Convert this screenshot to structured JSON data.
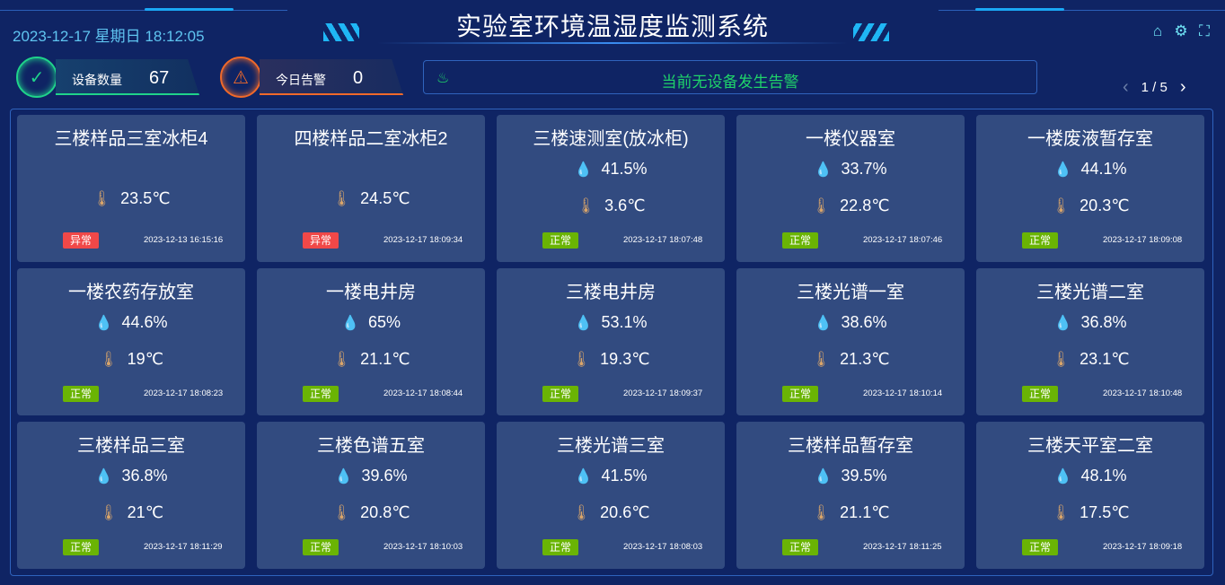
{
  "header": {
    "title": "实验室环境温湿度监测系统",
    "datetime": "2023-12-17 星期日 18:12:05",
    "icons": [
      "home-icon",
      "gear-icon",
      "fullscreen-icon"
    ]
  },
  "stats": [
    {
      "label": "设备数量",
      "value": "67",
      "color": "#1fd38a",
      "icon": "check-circle-icon"
    },
    {
      "label": "今日告警",
      "value": "0",
      "color": "#f0692a",
      "icon": "alarm-light-icon"
    }
  ],
  "alarm": {
    "message": "当前无设备发生告警",
    "color": "#1fd36a"
  },
  "pager": {
    "text": "1 / 5"
  },
  "status_colors": {
    "正常": "#6ab404",
    "异常": "#f04848"
  },
  "devices": [
    {
      "name": "三楼样品三室冰柜4",
      "humidity": null,
      "temp": "23.5℃",
      "status": "异常",
      "time": "2023-12-13 16:15:16"
    },
    {
      "name": "四楼样品二室冰柜2",
      "humidity": null,
      "temp": "24.5℃",
      "status": "异常",
      "time": "2023-12-17 18:09:34"
    },
    {
      "name": "三楼速测室(放冰柜)",
      "humidity": "41.5%",
      "temp": "3.6℃",
      "status": "正常",
      "time": "2023-12-17 18:07:48"
    },
    {
      "name": "一楼仪器室",
      "humidity": "33.7%",
      "temp": "22.8℃",
      "status": "正常",
      "time": "2023-12-17 18:07:46"
    },
    {
      "name": "一楼废液暂存室",
      "humidity": "44.1%",
      "temp": "20.3℃",
      "status": "正常",
      "time": "2023-12-17 18:09:08"
    },
    {
      "name": "一楼农药存放室",
      "humidity": "44.6%",
      "temp": "19℃",
      "status": "正常",
      "time": "2023-12-17 18:08:23"
    },
    {
      "name": "一楼电井房",
      "humidity": "65%",
      "temp": "21.1℃",
      "status": "正常",
      "time": "2023-12-17 18:08:44"
    },
    {
      "name": "三楼电井房",
      "humidity": "53.1%",
      "temp": "19.3℃",
      "status": "正常",
      "time": "2023-12-17 18:09:37"
    },
    {
      "name": "三楼光谱一室",
      "humidity": "38.6%",
      "temp": "21.3℃",
      "status": "正常",
      "time": "2023-12-17 18:10:14"
    },
    {
      "name": "三楼光谱二室",
      "humidity": "36.8%",
      "temp": "23.1℃",
      "status": "正常",
      "time": "2023-12-17 18:10:48"
    },
    {
      "name": "三楼样品三室",
      "humidity": "36.8%",
      "temp": "21℃",
      "status": "正常",
      "time": "2023-12-17 18:11:29"
    },
    {
      "name": "三楼色谱五室",
      "humidity": "39.6%",
      "temp": "20.8℃",
      "status": "正常",
      "time": "2023-12-17 18:10:03"
    },
    {
      "name": "三楼光谱三室",
      "humidity": "41.5%",
      "temp": "20.6℃",
      "status": "正常",
      "time": "2023-12-17 18:08:03"
    },
    {
      "name": "三楼样品暂存室",
      "humidity": "39.5%",
      "temp": "21.1℃",
      "status": "正常",
      "time": "2023-12-17 18:11:25"
    },
    {
      "name": "三楼天平室二室",
      "humidity": "48.1%",
      "temp": "17.5℃",
      "status": "正常",
      "time": "2023-12-17 18:09:18"
    }
  ]
}
